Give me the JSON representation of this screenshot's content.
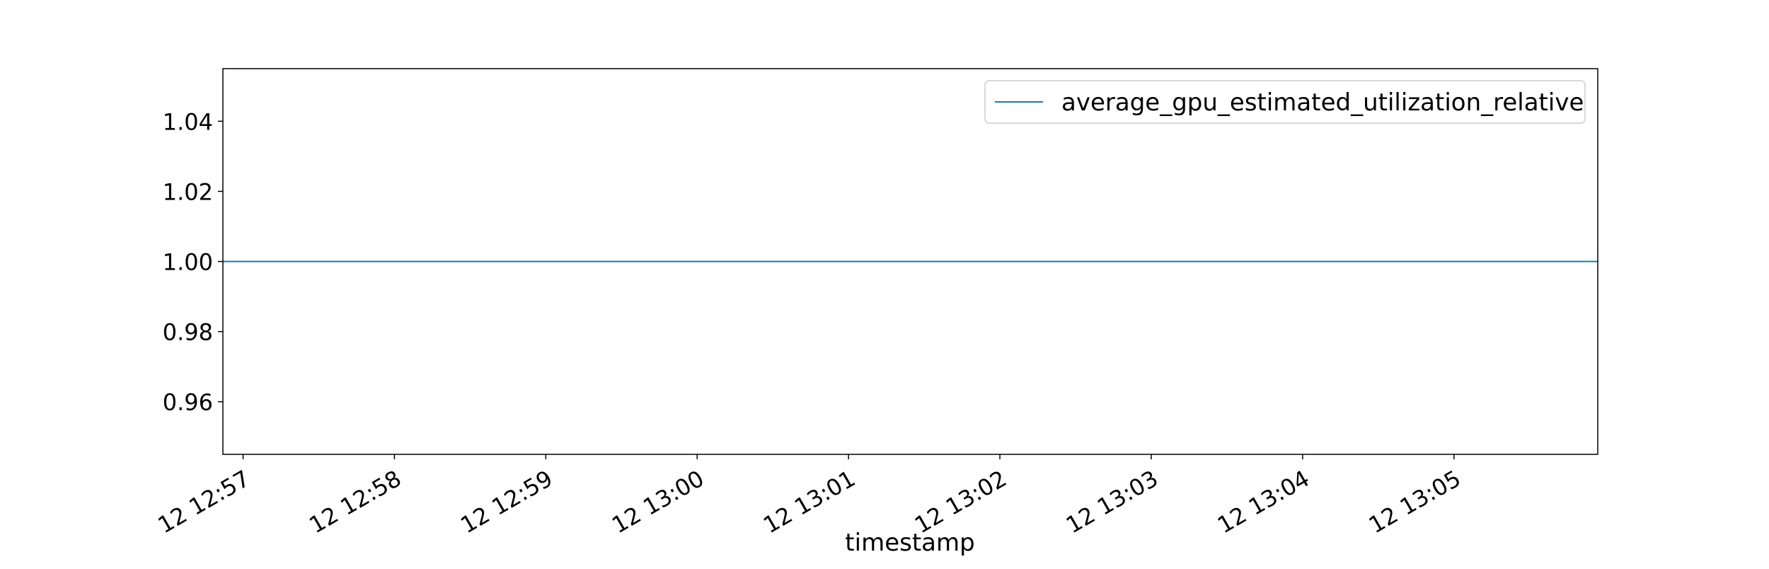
{
  "chart_data": {
    "type": "line",
    "title": "",
    "xlabel": "timestamp",
    "ylabel": "",
    "x_ticks": [
      "12 12:57",
      "12 12:58",
      "12 12:59",
      "12 13:00",
      "12 13:01",
      "12 13:02",
      "12 13:03",
      "12 13:04",
      "12 13:05"
    ],
    "x_range": [
      "12 12:56:52",
      "12 13:05:57"
    ],
    "y_ticks": [
      "0.96",
      "0.98",
      "1.00",
      "1.02",
      "1.04"
    ],
    "ylim": [
      0.945,
      1.055
    ],
    "grid": false,
    "legend_position": "top-right",
    "series": [
      {
        "name": "average_gpu_estimated_utilization_relative",
        "color": "#1f77b4",
        "x": [
          "12 12:56:52",
          "12 13:05:57"
        ],
        "y": [
          1.0,
          1.0
        ]
      }
    ]
  }
}
